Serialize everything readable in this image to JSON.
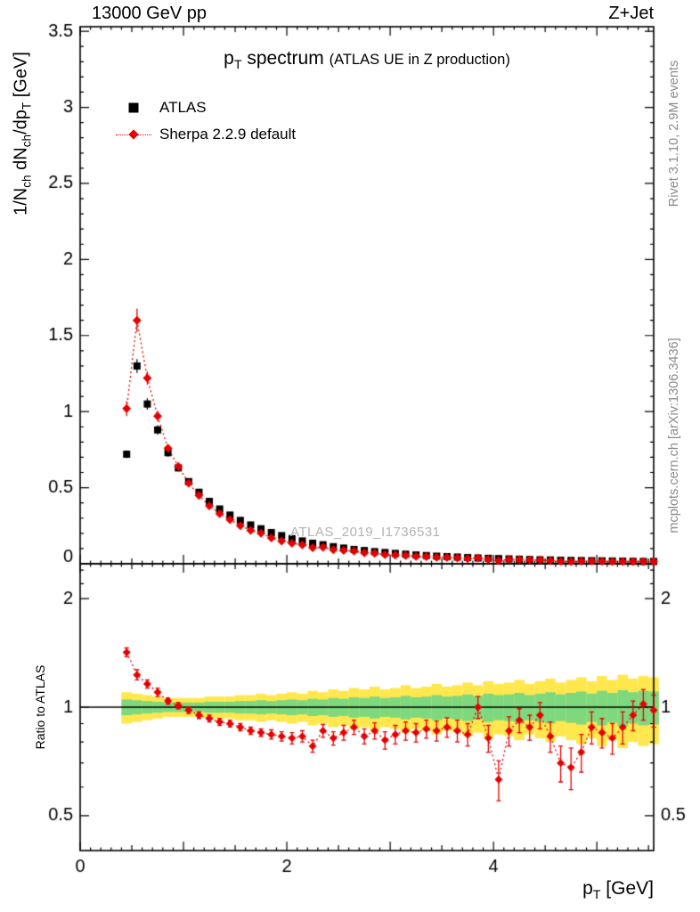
{
  "header": {
    "left": "13000 GeV pp",
    "right": "Z+Jet"
  },
  "sidebar": {
    "rivet": "Rivet 3.1.10,  2.9M events",
    "mcplots": "mcplots.cern.ch [arXiv:1306.3436]"
  },
  "labels": {
    "title_parts": {
      "a": "p",
      "b": "T",
      "c": " spectrum",
      "note": "(ATLAS UE in Z production)"
    },
    "ylabel_parts": {
      "a": "1/N",
      "b": "ch",
      "c": " dN",
      "d": "ch",
      "e": "/dp",
      "f": "T",
      "g": " [GeV]"
    },
    "xlabel_parts": {
      "a": "p",
      "b": "T",
      "c": " [GeV]"
    },
    "ratio_ylabel": "Ratio to ATLAS",
    "watermark": "ATLAS_2019_I1736531"
  },
  "main_panel": {
    "legend": [
      {
        "label": "ATLAS",
        "marker": "filled-square",
        "color": "#000000"
      },
      {
        "label": "Sherpa 2.2.9 default",
        "marker": "filled-diamond-dotted-line",
        "color": "#e60000"
      }
    ]
  },
  "colors": {
    "red": "#e60000",
    "black": "#000000",
    "band_yellow": "#ffe74c",
    "band_green": "#7ed87e",
    "gray_text": "#8a8a8a",
    "watermark": "#b3b3b3"
  },
  "chart_data": [
    {
      "type": "scatter",
      "title": "pT spectrum (ATLAS UE in Z production)",
      "xlabel": "pT [GeV]",
      "ylabel": "1/Nch dNch/dpT [GeV]",
      "xlim": [
        0,
        5.55
      ],
      "ylim": [
        0,
        3.53
      ],
      "xticks_labeled": [
        0,
        2,
        4
      ],
      "yticks_labeled": [
        0,
        0.5,
        1,
        1.5,
        2,
        2.5,
        3,
        3.5
      ],
      "grid": false,
      "legend_position": "top-left",
      "x": [
        0.45,
        0.55,
        0.65,
        0.75,
        0.85,
        0.95,
        1.05,
        1.15,
        1.25,
        1.35,
        1.45,
        1.55,
        1.65,
        1.75,
        1.85,
        1.95,
        2.05,
        2.15,
        2.25,
        2.35,
        2.45,
        2.55,
        2.65,
        2.75,
        2.85,
        2.95,
        3.05,
        3.15,
        3.25,
        3.35,
        3.45,
        3.55,
        3.65,
        3.75,
        3.85,
        3.95,
        4.05,
        4.15,
        4.25,
        4.35,
        4.45,
        4.55,
        4.65,
        4.75,
        4.85,
        4.95,
        5.05,
        5.15,
        5.25,
        5.35,
        5.45,
        5.55
      ],
      "series": [
        {
          "name": "ATLAS",
          "marker": "filled-square",
          "color": "#000000",
          "values": [
            0.72,
            1.3,
            1.05,
            0.88,
            0.73,
            0.63,
            0.54,
            0.47,
            0.41,
            0.36,
            0.32,
            0.285,
            0.255,
            0.23,
            0.205,
            0.185,
            0.165,
            0.15,
            0.135,
            0.125,
            0.112,
            0.103,
            0.094,
            0.087,
            0.08,
            0.074,
            0.068,
            0.063,
            0.058,
            0.054,
            0.05,
            0.047,
            0.044,
            0.041,
            0.038,
            0.036,
            0.034,
            0.032,
            0.03,
            0.028,
            0.026,
            0.025,
            0.023,
            0.022,
            0.021,
            0.02,
            0.019,
            0.018,
            0.017,
            0.016,
            0.015,
            0.015
          ]
        },
        {
          "name": "Sherpa 2.2.9 default",
          "marker": "filled-diamond",
          "line": "dotted",
          "color": "#e60000",
          "values": [
            1.02,
            1.6,
            1.22,
            0.97,
            0.76,
            0.64,
            0.53,
            0.45,
            0.38,
            0.33,
            0.29,
            0.25,
            0.22,
            0.2,
            0.17,
            0.15,
            0.135,
            0.125,
            0.105,
            0.108,
            0.092,
            0.088,
            0.083,
            0.072,
            0.069,
            0.06,
            0.057,
            0.054,
            0.049,
            0.047,
            0.043,
            0.041,
            0.038,
            0.034,
            0.038,
            0.03,
            0.021,
            0.028,
            0.028,
            0.025,
            0.025,
            0.021,
            0.016,
            0.015,
            0.016,
            0.018,
            0.016,
            0.015,
            0.015,
            0.015,
            0.015,
            0.015
          ]
        }
      ]
    },
    {
      "type": "scatter",
      "ylabel": "Ratio to ATLAS",
      "yscale": "log",
      "ylim": [
        0.4,
        2.5
      ],
      "yticks": [
        0.5,
        1,
        2
      ],
      "reference_line": 1.0,
      "x": [
        0.45,
        0.55,
        0.65,
        0.75,
        0.85,
        0.95,
        1.05,
        1.15,
        1.25,
        1.35,
        1.45,
        1.55,
        1.65,
        1.75,
        1.85,
        1.95,
        2.05,
        2.15,
        2.25,
        2.35,
        2.45,
        2.55,
        2.65,
        2.75,
        2.85,
        2.95,
        3.05,
        3.15,
        3.25,
        3.35,
        3.45,
        3.55,
        3.65,
        3.75,
        3.85,
        3.95,
        4.05,
        4.15,
        4.25,
        4.35,
        4.45,
        4.55,
        4.65,
        4.75,
        4.85,
        4.95,
        5.05,
        5.15,
        5.25,
        5.35,
        5.45,
        5.55
      ],
      "series": [
        {
          "name": "Sherpa 2.2.9 default / ATLAS",
          "marker": "filled-diamond",
          "line": "dotted",
          "color": "#e60000",
          "values": [
            1.42,
            1.23,
            1.16,
            1.1,
            1.04,
            1.01,
            0.98,
            0.95,
            0.93,
            0.91,
            0.9,
            0.88,
            0.86,
            0.85,
            0.84,
            0.83,
            0.82,
            0.83,
            0.78,
            0.86,
            0.82,
            0.85,
            0.88,
            0.83,
            0.86,
            0.81,
            0.84,
            0.86,
            0.85,
            0.87,
            0.86,
            0.88,
            0.86,
            0.84,
            1.0,
            0.82,
            0.63,
            0.86,
            0.92,
            0.88,
            0.95,
            0.83,
            0.7,
            0.68,
            0.75,
            0.88,
            0.85,
            0.82,
            0.88,
            0.95,
            1.02,
            0.98
          ]
        }
      ],
      "err": [
        0.04,
        0.04,
        0.03,
        0.03,
        0.02,
        0.02,
        0.02,
        0.02,
        0.02,
        0.02,
        0.02,
        0.02,
        0.02,
        0.02,
        0.025,
        0.025,
        0.03,
        0.03,
        0.03,
        0.035,
        0.035,
        0.04,
        0.04,
        0.04,
        0.045,
        0.045,
        0.05,
        0.05,
        0.05,
        0.05,
        0.055,
        0.055,
        0.06,
        0.06,
        0.07,
        0.07,
        0.08,
        0.08,
        0.07,
        0.07,
        0.08,
        0.08,
        0.08,
        0.09,
        0.09,
        0.09,
        0.08,
        0.08,
        0.09,
        0.09,
        0.1,
        0.1
      ],
      "band_yellow": [
        0.1,
        0.09,
        0.08,
        0.07,
        0.06,
        0.06,
        0.06,
        0.06,
        0.07,
        0.07,
        0.07,
        0.08,
        0.08,
        0.09,
        0.08,
        0.09,
        0.1,
        0.09,
        0.11,
        0.1,
        0.12,
        0.11,
        0.13,
        0.12,
        0.14,
        0.12,
        0.13,
        0.15,
        0.13,
        0.14,
        0.16,
        0.14,
        0.15,
        0.17,
        0.15,
        0.18,
        0.16,
        0.17,
        0.19,
        0.16,
        0.18,
        0.2,
        0.17,
        0.19,
        0.21,
        0.18,
        0.22,
        0.19,
        0.23,
        0.2,
        0.22,
        0.21
      ],
      "band_green": [
        0.05,
        0.045,
        0.04,
        0.035,
        0.03,
        0.03,
        0.03,
        0.03,
        0.035,
        0.035,
        0.035,
        0.04,
        0.04,
        0.045,
        0.04,
        0.045,
        0.05,
        0.045,
        0.055,
        0.05,
        0.06,
        0.055,
        0.065,
        0.06,
        0.07,
        0.06,
        0.065,
        0.075,
        0.065,
        0.07,
        0.08,
        0.07,
        0.075,
        0.085,
        0.075,
        0.09,
        0.08,
        0.085,
        0.095,
        0.08,
        0.09,
        0.1,
        0.085,
        0.095,
        0.105,
        0.09,
        0.11,
        0.095,
        0.115,
        0.1,
        0.11,
        0.105
      ]
    }
  ]
}
